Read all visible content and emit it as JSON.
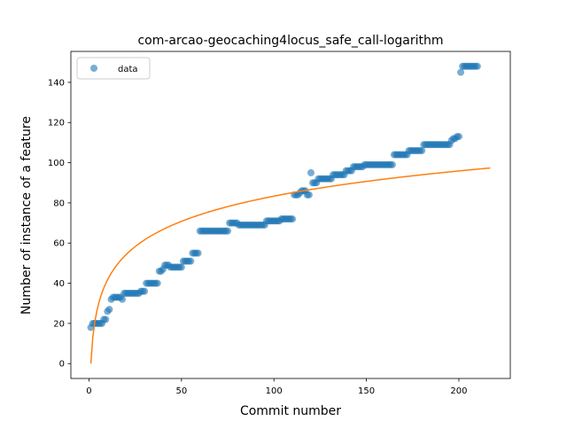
{
  "chart_data": {
    "type": "scatter",
    "title": "com-arcao-geocaching4locus_safe_call-logarithm",
    "xlabel": "Commit number",
    "ylabel": "Number of instance of a feature",
    "xlim": [
      -9.8,
      227.8
    ],
    "ylim": [
      -7.4,
      155.4
    ],
    "x_ticks": [
      0,
      50,
      100,
      150,
      200
    ],
    "y_ticks": [
      0,
      20,
      40,
      60,
      80,
      100,
      120,
      140
    ],
    "grid": false,
    "legend": {
      "position": "top-left",
      "entries": [
        "data"
      ]
    },
    "colors": {
      "data": "#1f77b4",
      "fit": "#ff7f0e"
    },
    "series": [
      {
        "name": "data",
        "kind": "scatter",
        "points": [
          [
            1,
            18
          ],
          [
            2,
            20
          ],
          [
            3,
            20
          ],
          [
            4,
            20
          ],
          [
            5,
            20
          ],
          [
            6,
            20
          ],
          [
            7,
            20
          ],
          [
            8,
            22
          ],
          [
            9,
            22
          ],
          [
            10,
            26
          ],
          [
            11,
            27
          ],
          [
            12,
            32
          ],
          [
            13,
            33
          ],
          [
            14,
            33
          ],
          [
            15,
            33
          ],
          [
            16,
            33
          ],
          [
            17,
            33
          ],
          [
            18,
            32
          ],
          [
            19,
            35
          ],
          [
            20,
            35
          ],
          [
            21,
            35
          ],
          [
            22,
            35
          ],
          [
            23,
            35
          ],
          [
            24,
            35
          ],
          [
            25,
            35
          ],
          [
            26,
            35
          ],
          [
            27,
            35
          ],
          [
            28,
            36
          ],
          [
            29,
            36
          ],
          [
            30,
            36
          ],
          [
            31,
            40
          ],
          [
            32,
            40
          ],
          [
            33,
            40
          ],
          [
            34,
            40
          ],
          [
            35,
            40
          ],
          [
            36,
            40
          ],
          [
            37,
            40
          ],
          [
            38,
            46
          ],
          [
            39,
            46
          ],
          [
            40,
            47
          ],
          [
            41,
            49
          ],
          [
            42,
            49
          ],
          [
            43,
            49
          ],
          [
            44,
            48
          ],
          [
            45,
            48
          ],
          [
            46,
            48
          ],
          [
            47,
            48
          ],
          [
            48,
            48
          ],
          [
            49,
            48
          ],
          [
            50,
            48
          ],
          [
            51,
            51
          ],
          [
            52,
            51
          ],
          [
            53,
            51
          ],
          [
            54,
            51
          ],
          [
            55,
            51
          ],
          [
            56,
            55
          ],
          [
            57,
            55
          ],
          [
            58,
            55
          ],
          [
            59,
            55
          ],
          [
            60,
            66
          ],
          [
            61,
            66
          ],
          [
            62,
            66
          ],
          [
            63,
            66
          ],
          [
            64,
            66
          ],
          [
            65,
            66
          ],
          [
            66,
            66
          ],
          [
            67,
            66
          ],
          [
            68,
            66
          ],
          [
            69,
            66
          ],
          [
            70,
            66
          ],
          [
            71,
            66
          ],
          [
            72,
            66
          ],
          [
            73,
            66
          ],
          [
            74,
            66
          ],
          [
            75,
            66
          ],
          [
            76,
            70
          ],
          [
            77,
            70
          ],
          [
            78,
            70
          ],
          [
            79,
            70
          ],
          [
            80,
            70
          ],
          [
            81,
            69
          ],
          [
            82,
            69
          ],
          [
            83,
            69
          ],
          [
            84,
            69
          ],
          [
            85,
            69
          ],
          [
            86,
            69
          ],
          [
            87,
            69
          ],
          [
            88,
            69
          ],
          [
            89,
            69
          ],
          [
            90,
            69
          ],
          [
            91,
            69
          ],
          [
            92,
            69
          ],
          [
            93,
            69
          ],
          [
            94,
            69
          ],
          [
            95,
            69
          ],
          [
            96,
            71
          ],
          [
            97,
            71
          ],
          [
            98,
            71
          ],
          [
            99,
            71
          ],
          [
            100,
            71
          ],
          [
            101,
            71
          ],
          [
            102,
            71
          ],
          [
            103,
            71
          ],
          [
            104,
            72
          ],
          [
            105,
            72
          ],
          [
            106,
            72
          ],
          [
            107,
            72
          ],
          [
            108,
            72
          ],
          [
            109,
            72
          ],
          [
            110,
            72
          ],
          [
            111,
            84
          ],
          [
            112,
            84
          ],
          [
            113,
            84
          ],
          [
            114,
            85
          ],
          [
            115,
            86
          ],
          [
            116,
            86
          ],
          [
            117,
            86
          ],
          [
            118,
            84
          ],
          [
            119,
            84
          ],
          [
            120,
            95
          ],
          [
            121,
            90
          ],
          [
            122,
            90
          ],
          [
            123,
            90
          ],
          [
            124,
            92
          ],
          [
            125,
            92
          ],
          [
            126,
            92
          ],
          [
            127,
            92
          ],
          [
            128,
            92
          ],
          [
            129,
            92
          ],
          [
            130,
            92
          ],
          [
            131,
            92
          ],
          [
            132,
            94
          ],
          [
            133,
            94
          ],
          [
            134,
            94
          ],
          [
            135,
            94
          ],
          [
            136,
            94
          ],
          [
            137,
            94
          ],
          [
            138,
            94
          ],
          [
            139,
            96
          ],
          [
            140,
            96
          ],
          [
            141,
            96
          ],
          [
            142,
            96
          ],
          [
            143,
            98
          ],
          [
            144,
            98
          ],
          [
            145,
            98
          ],
          [
            146,
            98
          ],
          [
            147,
            98
          ],
          [
            148,
            98
          ],
          [
            149,
            99
          ],
          [
            150,
            99
          ],
          [
            151,
            99
          ],
          [
            152,
            99
          ],
          [
            153,
            99
          ],
          [
            154,
            99
          ],
          [
            155,
            99
          ],
          [
            156,
            99
          ],
          [
            157,
            99
          ],
          [
            158,
            99
          ],
          [
            159,
            99
          ],
          [
            160,
            99
          ],
          [
            161,
            99
          ],
          [
            162,
            99
          ],
          [
            163,
            99
          ],
          [
            164,
            99
          ],
          [
            165,
            104
          ],
          [
            166,
            104
          ],
          [
            167,
            104
          ],
          [
            168,
            104
          ],
          [
            169,
            104
          ],
          [
            170,
            104
          ],
          [
            171,
            104
          ],
          [
            172,
            104
          ],
          [
            173,
            106
          ],
          [
            174,
            106
          ],
          [
            175,
            106
          ],
          [
            176,
            106
          ],
          [
            177,
            106
          ],
          [
            178,
            106
          ],
          [
            179,
            106
          ],
          [
            180,
            106
          ],
          [
            181,
            109
          ],
          [
            182,
            109
          ],
          [
            183,
            109
          ],
          [
            184,
            109
          ],
          [
            185,
            109
          ],
          [
            186,
            109
          ],
          [
            187,
            109
          ],
          [
            188,
            109
          ],
          [
            189,
            109
          ],
          [
            190,
            109
          ],
          [
            191,
            109
          ],
          [
            192,
            109
          ],
          [
            193,
            109
          ],
          [
            194,
            109
          ],
          [
            195,
            109
          ],
          [
            196,
            111
          ],
          [
            197,
            112
          ],
          [
            198,
            112
          ],
          [
            199,
            113
          ],
          [
            200,
            113
          ],
          [
            201,
            145
          ],
          [
            202,
            148
          ],
          [
            203,
            148
          ],
          [
            204,
            148
          ],
          [
            205,
            148
          ],
          [
            206,
            148
          ],
          [
            207,
            148
          ],
          [
            208,
            148
          ],
          [
            209,
            148
          ],
          [
            210,
            148
          ]
        ]
      },
      {
        "kind": "line",
        "function": "log",
        "a": 18.1,
        "x_range": [
          1,
          217
        ],
        "samples": 200
      }
    ]
  }
}
